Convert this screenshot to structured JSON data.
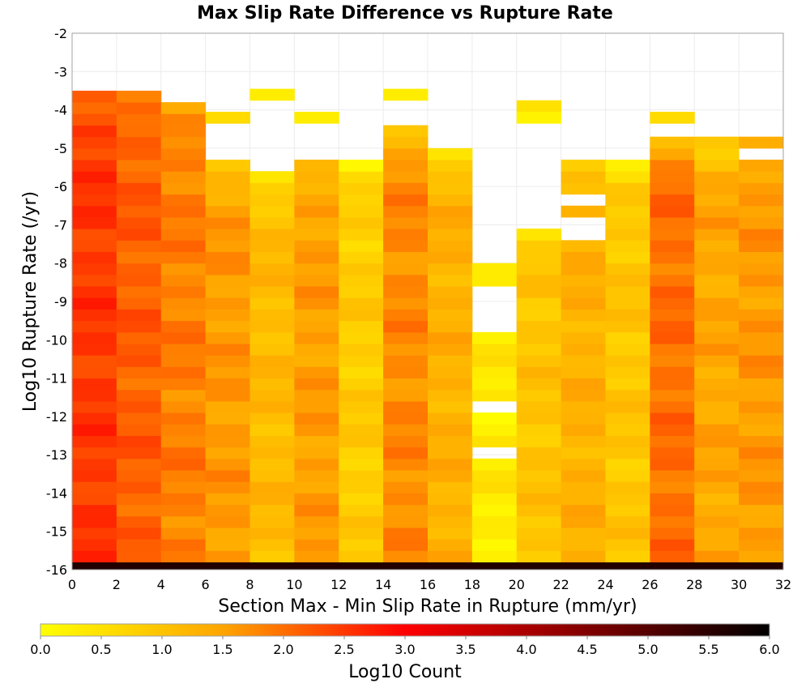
{
  "chart_data": {
    "type": "heatmap",
    "title": "Max Slip Rate Difference vs Rupture Rate",
    "xlabel": "Section Max - Min Slip Rate in Rupture (mm/yr)",
    "ylabel": "Log10 Rupture Rate (/yr)",
    "xlim": [
      0,
      32
    ],
    "ylim": [
      -16,
      -2
    ],
    "x_ticks": [
      "0",
      "2",
      "4",
      "6",
      "8",
      "10",
      "12",
      "14",
      "16",
      "18",
      "20",
      "22",
      "24",
      "26",
      "28",
      "30",
      "32"
    ],
    "y_ticks": [
      "-2",
      "-3",
      "-4",
      "-5",
      "-6",
      "-7",
      "-8",
      "-9",
      "-10",
      "-11",
      "-12",
      "-13",
      "-14",
      "-15",
      "-16"
    ],
    "x_bin_width": 2,
    "y_bin_height": 0.3,
    "y_bin_start": -16.1,
    "columns": [
      {
        "x": [
          0,
          2
        ],
        "top_y": -3.3,
        "base": 2.5,
        "low_row": 5.6
      },
      {
        "x": [
          2,
          4
        ],
        "top_y": -3.3,
        "base": 2.15,
        "low_row": 5.6
      },
      {
        "x": [
          4,
          6
        ],
        "top_y": -3.6,
        "base": 1.85,
        "low_row": 5.6
      },
      {
        "x": [
          6,
          8
        ],
        "top_y": -5.3,
        "base": 1.6,
        "low_row": 5.6,
        "isolated": [
          [
            -4.2,
            0.6
          ]
        ]
      },
      {
        "x": [
          8,
          10
        ],
        "top_y": -5.6,
        "base": 1.15,
        "low_row": 5.6,
        "isolated": [
          [
            -3.6,
            0.3
          ]
        ]
      },
      {
        "x": [
          10,
          12
        ],
        "top_y": -5.3,
        "base": 1.55,
        "low_row": 5.6,
        "isolated": [
          [
            -4.2,
            0.3
          ]
        ]
      },
      {
        "x": [
          12,
          14
        ],
        "top_y": -5.3,
        "base": 0.85,
        "low_row": 5.6
      },
      {
        "x": [
          14,
          16
        ],
        "top_y": -4.4,
        "base": 1.75,
        "low_row": 5.6,
        "isolated": [
          [
            -3.6,
            0.3
          ]
        ]
      },
      {
        "x": [
          16,
          18
        ],
        "top_y": -5.0,
        "base": 1.3,
        "low_row": 5.6
      },
      {
        "x": [
          18,
          20
        ],
        "top_y": -7.3,
        "base": 0.35,
        "low_row": 5.6,
        "gaps": [
          [
            -8.1,
            -7.5
          ],
          [
            -9.9,
            -8.7
          ],
          [
            -10.2,
            -10.1
          ],
          [
            -11.9,
            -11.5
          ],
          [
            -13.0,
            -12.7
          ]
        ]
      },
      {
        "x": [
          20,
          22
        ],
        "top_y": -7.0,
        "base": 1.0,
        "low_row": 5.6,
        "isolated": [
          [
            -3.9,
            0.5
          ],
          [
            -4.2,
            0.2
          ]
        ]
      },
      {
        "x": [
          22,
          24
        ],
        "top_y": -5.3,
        "base": 1.3,
        "low_row": 5.6,
        "gaps": [
          [
            -6.6,
            -6.2
          ],
          [
            -7.3,
            -6.9
          ]
        ]
      },
      {
        "x": [
          24,
          26
        ],
        "top_y": -5.3,
        "base": 0.95,
        "low_row": 5.6
      },
      {
        "x": [
          26,
          28
        ],
        "top_y": -4.7,
        "base": 2.0,
        "low_row": 5.6,
        "isolated": [
          [
            -4.2,
            0.6
          ]
        ]
      },
      {
        "x": [
          28,
          30
        ],
        "top_y": -4.7,
        "base": 1.45,
        "low_row": 5.6
      },
      {
        "x": [
          30,
          32
        ],
        "top_y": -4.2,
        "base": 1.6,
        "low_row": 5.6,
        "gaps": [
          [
            -5.3,
            -5.0
          ],
          [
            -4.7,
            -4.4
          ]
        ]
      }
    ],
    "colorbar": {
      "label": "Log10 Count",
      "range": [
        0.0,
        6.0
      ],
      "ticks": [
        "0.0",
        "0.5",
        "1.0",
        "1.5",
        "2.0",
        "2.5",
        "3.0",
        "3.5",
        "4.0",
        "4.5",
        "5.0",
        "5.5",
        "6.0"
      ],
      "stops": [
        "#ffff00",
        "#ffa500",
        "#ff0000",
        "#800000",
        "#000000"
      ],
      "orientation": "horizontal",
      "placement": "bottom"
    }
  }
}
